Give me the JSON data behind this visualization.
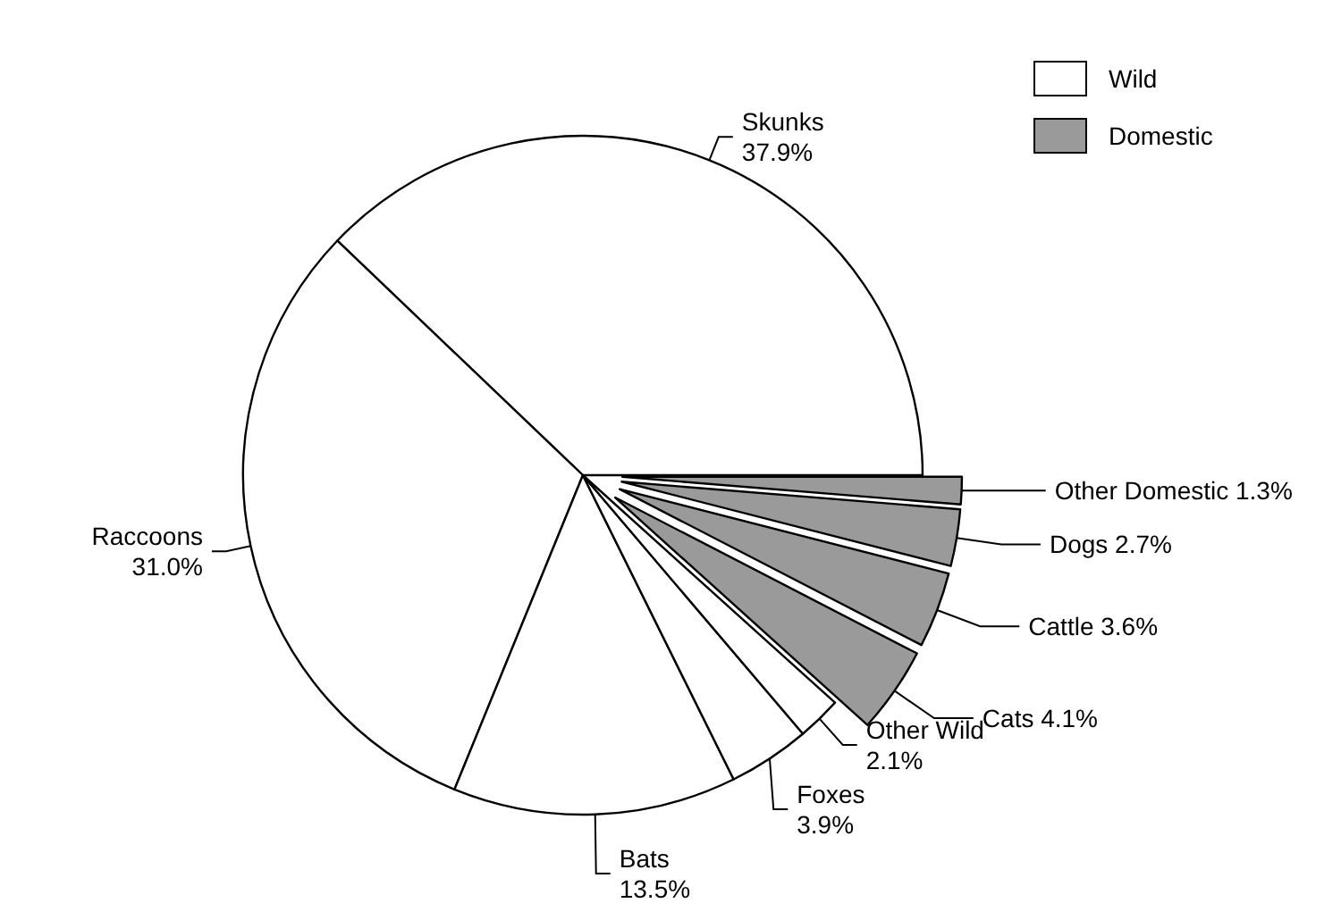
{
  "chart_data": {
    "type": "pie",
    "categories": [
      "Skunks",
      "Raccoons",
      "Bats",
      "Foxes",
      "Other Wild",
      "Cats",
      "Cattle",
      "Dogs",
      "Other Domestic"
    ],
    "values": [
      37.9,
      31.0,
      13.5,
      3.9,
      2.1,
      4.1,
      3.6,
      2.7,
      1.3
    ],
    "colors": [
      "#ffffff",
      "#ffffff",
      "#ffffff",
      "#ffffff",
      "#ffffff",
      "#9a9a9a",
      "#9a9a9a",
      "#9a9a9a",
      "#9a9a9a"
    ],
    "value_labels": [
      "37.9%",
      "31.0%",
      "13.5%",
      "3.9%",
      "2.1%",
      "4.1%",
      "3.6%",
      "2.7%",
      "1.3%"
    ],
    "annotations": [
      "Wild",
      "Domestic"
    ]
  }
}
